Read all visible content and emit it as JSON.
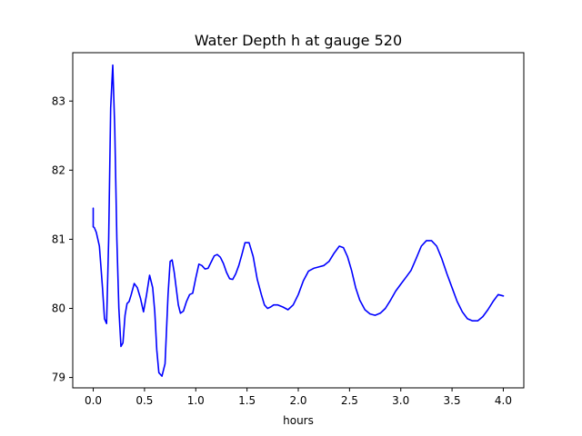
{
  "chart_data": {
    "type": "line",
    "title": "Water Depth h at gauge 520",
    "xlabel": "hours",
    "ylabel": "",
    "xlim": [
      -0.2,
      4.2
    ],
    "ylim": [
      78.85,
      83.7
    ],
    "xticks": [
      0.0,
      0.5,
      1.0,
      1.5,
      2.0,
      2.5,
      3.0,
      3.5,
      4.0
    ],
    "xtick_labels": [
      "0.0",
      "0.5",
      "1.0",
      "1.5",
      "2.0",
      "2.5",
      "3.0",
      "3.5",
      "4.0"
    ],
    "yticks": [
      79,
      80,
      81,
      82,
      83
    ],
    "ytick_labels": [
      "79",
      "80",
      "81",
      "82",
      "83"
    ],
    "grid": false,
    "legend": "none",
    "series": [
      {
        "color": "#0000ff",
        "x": [
          0.0,
          0.0,
          0.01,
          0.03,
          0.06,
          0.09,
          0.11,
          0.13,
          0.15,
          0.17,
          0.19,
          0.21,
          0.23,
          0.25,
          0.27,
          0.29,
          0.31,
          0.33,
          0.35,
          0.37,
          0.4,
          0.43,
          0.46,
          0.49,
          0.52,
          0.55,
          0.58,
          0.6,
          0.62,
          0.64,
          0.67,
          0.7,
          0.73,
          0.75,
          0.77,
          0.79,
          0.81,
          0.83,
          0.85,
          0.88,
          0.91,
          0.94,
          0.97,
          1.0,
          1.03,
          1.06,
          1.09,
          1.12,
          1.15,
          1.18,
          1.21,
          1.24,
          1.27,
          1.3,
          1.33,
          1.36,
          1.39,
          1.42,
          1.45,
          1.48,
          1.52,
          1.56,
          1.6,
          1.64,
          1.67,
          1.7,
          1.73,
          1.76,
          1.8,
          1.85,
          1.9,
          1.95,
          2.0,
          2.05,
          2.1,
          2.15,
          2.2,
          2.25,
          2.3,
          2.35,
          2.4,
          2.44,
          2.48,
          2.52,
          2.56,
          2.6,
          2.65,
          2.7,
          2.75,
          2.8,
          2.85,
          2.9,
          2.95,
          3.0,
          3.05,
          3.1,
          3.15,
          3.2,
          3.25,
          3.3,
          3.35,
          3.4,
          3.45,
          3.5,
          3.55,
          3.6,
          3.65,
          3.7,
          3.75,
          3.8,
          3.85,
          3.9,
          3.95,
          4.0
        ],
        "y": [
          81.45,
          81.18,
          81.17,
          81.1,
          80.9,
          80.3,
          79.85,
          79.78,
          81.0,
          82.9,
          83.52,
          82.6,
          81.0,
          80.0,
          79.45,
          79.5,
          79.9,
          80.07,
          80.1,
          80.2,
          80.36,
          80.3,
          80.15,
          79.95,
          80.2,
          80.48,
          80.3,
          79.95,
          79.4,
          79.07,
          79.02,
          79.2,
          80.2,
          80.68,
          80.7,
          80.52,
          80.28,
          80.05,
          79.93,
          79.96,
          80.1,
          80.2,
          80.22,
          80.44,
          80.64,
          80.62,
          80.57,
          80.58,
          80.67,
          80.76,
          80.78,
          80.74,
          80.65,
          80.52,
          80.43,
          80.42,
          80.5,
          80.62,
          80.78,
          80.95,
          80.95,
          80.75,
          80.42,
          80.2,
          80.05,
          80.0,
          80.02,
          80.05,
          80.05,
          80.02,
          79.98,
          80.05,
          80.2,
          80.4,
          80.54,
          80.58,
          80.6,
          80.62,
          80.68,
          80.8,
          80.9,
          80.88,
          80.75,
          80.55,
          80.3,
          80.12,
          79.98,
          79.92,
          79.9,
          79.93,
          80.0,
          80.12,
          80.25,
          80.35,
          80.45,
          80.55,
          80.72,
          80.9,
          80.98,
          80.98,
          80.9,
          80.72,
          80.5,
          80.3,
          80.1,
          79.95,
          79.85,
          79.82,
          79.82,
          79.88,
          79.98,
          80.1,
          80.2,
          80.18
        ]
      }
    ]
  }
}
